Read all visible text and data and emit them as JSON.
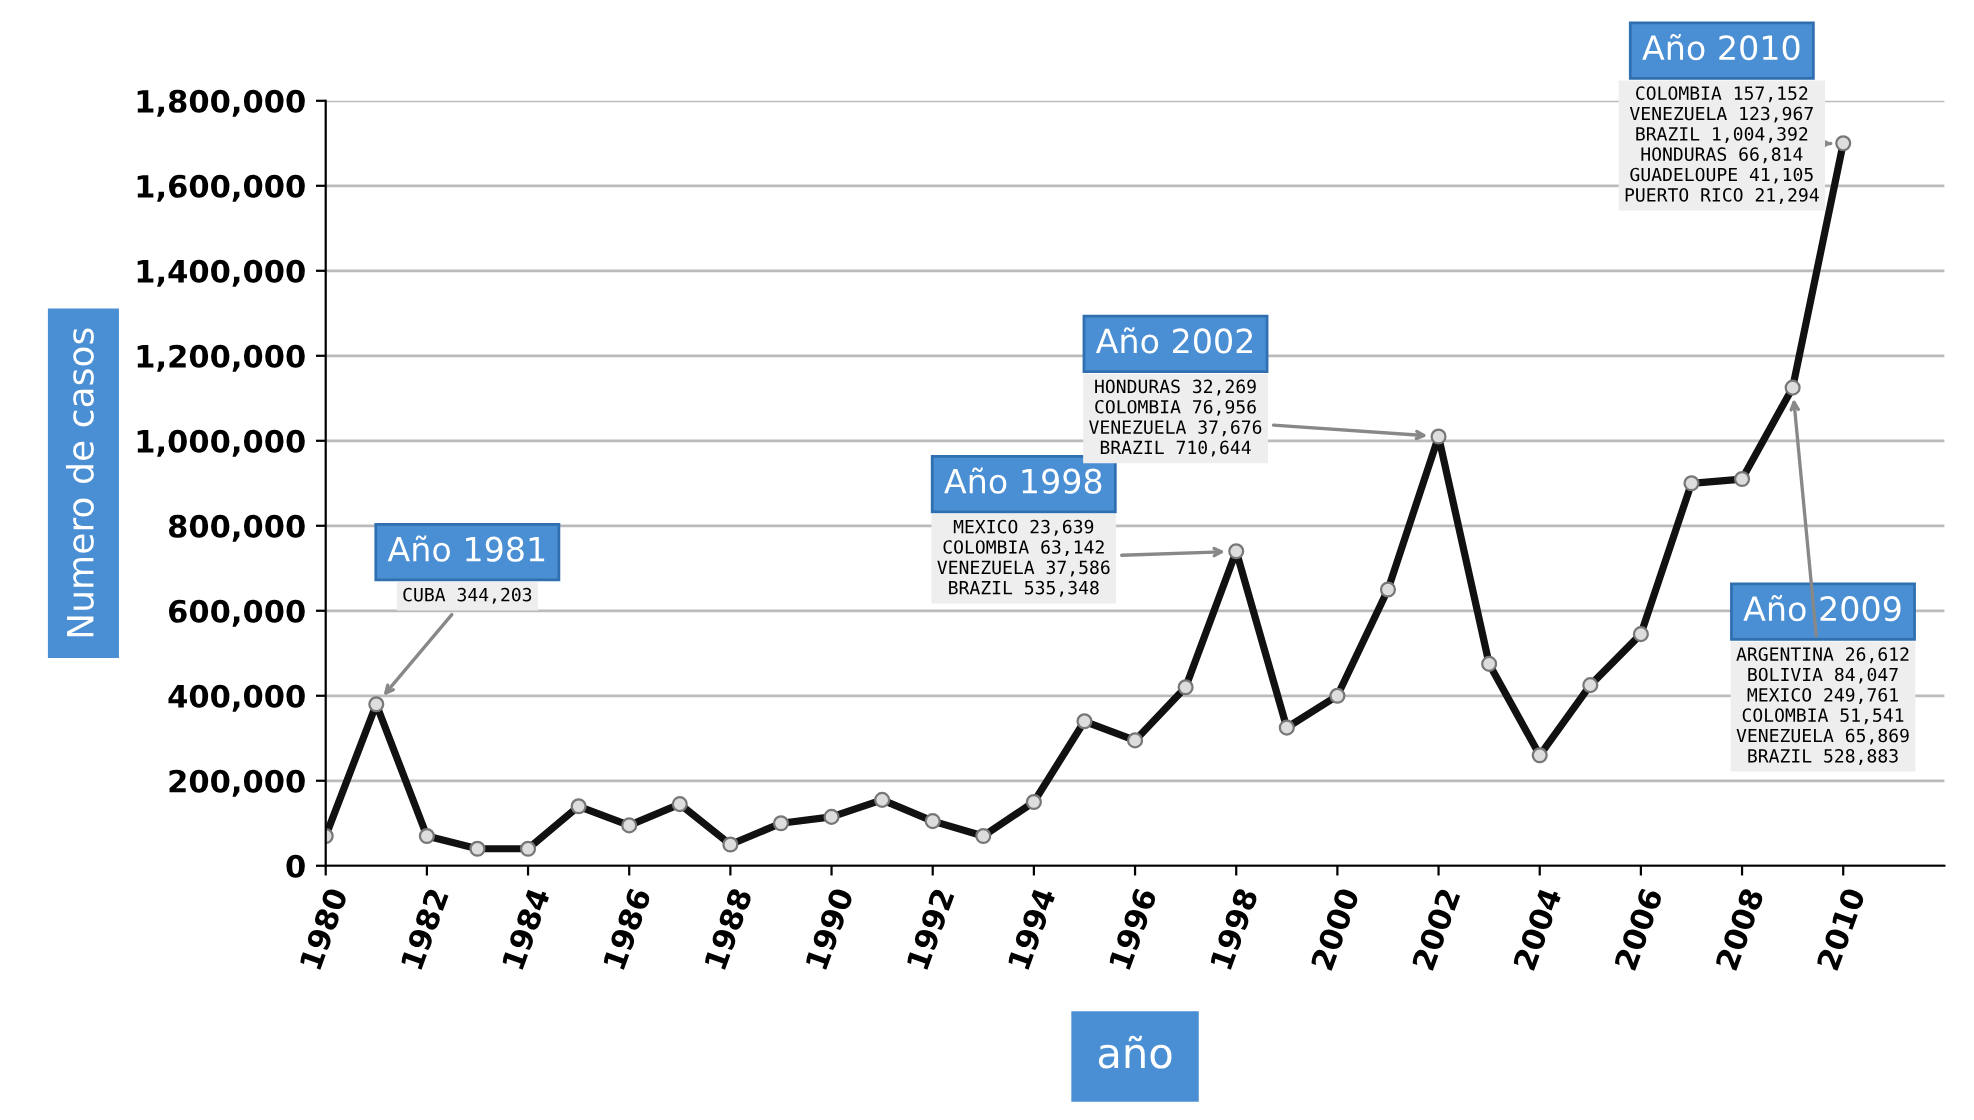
{
  "chart_data": {
    "type": "line",
    "xlabel": "año",
    "ylabel": "Numero de casos",
    "x": [
      1980,
      1981,
      1982,
      1983,
      1984,
      1985,
      1986,
      1987,
      1988,
      1989,
      1990,
      1991,
      1992,
      1993,
      1994,
      1995,
      1996,
      1997,
      1998,
      1999,
      2000,
      2001,
      2002,
      2003,
      2004,
      2005,
      2006,
      2007,
      2008,
      2009,
      2010
    ],
    "series": [
      {
        "color": "#111111",
        "values": [
          70000,
          380000,
          70000,
          40000,
          40000,
          140000,
          95000,
          145000,
          50000,
          100000,
          115000,
          155000,
          105000,
          70000,
          150000,
          340000,
          295000,
          420000,
          740000,
          325000,
          400000,
          650000,
          1010000,
          475000,
          260000,
          425000,
          545000,
          900000,
          910000,
          1125000,
          1700000
        ]
      }
    ],
    "xlim": [
      1980,
      2012
    ],
    "xticks": [
      1980,
      1982,
      1984,
      1986,
      1988,
      1990,
      1992,
      1994,
      1996,
      1998,
      2000,
      2002,
      2004,
      2006,
      2008,
      2010
    ],
    "ylim": [
      0,
      1800000
    ],
    "yticks": [
      {
        "value": 0,
        "label": "0"
      },
      {
        "value": 200000,
        "label": "200,000"
      },
      {
        "value": 400000,
        "label": "400,000"
      },
      {
        "value": 600000,
        "label": "600,000"
      },
      {
        "value": 800000,
        "label": "800,000"
      },
      {
        "value": 1000000,
        "label": "1,000,000"
      },
      {
        "value": 1200000,
        "label": "1,200,000"
      },
      {
        "value": 1400000,
        "label": "1,400,000"
      },
      {
        "value": 1600000,
        "label": "1,600,000"
      },
      {
        "value": 1800000,
        "label": "1,800,000"
      }
    ],
    "grid": "y",
    "marker": "circle",
    "line_style": "solid",
    "annotations": [
      {
        "text": "Año 1981\nCUBA 344,203",
        "x": 1981,
        "y": 380000
      },
      {
        "text": "Año 1998\nMEXICO 23,639\nCOLOMBIA 63,142\nVENEZUELA 37,586\nBRAZIL 535,348",
        "x": 1998,
        "y": 740000
      },
      {
        "text": "Año 2002\nHONDURAS 32,269\nCOLOMBIA 76,956\nVENEZUELA 37,676\nBRAZIL 710,644",
        "x": 2002,
        "y": 1010000
      },
      {
        "text": "Año 2009\nARGENTINA 26,612\nBOLIVIA 84,047\nMEXICO 249,761\nCOLOMBIA 51,541\nVENEZUELA 65,869\nBRAZIL 528,883",
        "x": 2009,
        "y": 1125000
      },
      {
        "text": "Año 2010\nCOLOMBIA 157,152\nVENEZUELA 123,967\nBRAZIL 1,004,392\nHONDURAS 66,814\nGUADELOUPE 41,105\nPUERTO RICO 21,294",
        "x": 2010,
        "y": 1700000
      }
    ]
  }
}
